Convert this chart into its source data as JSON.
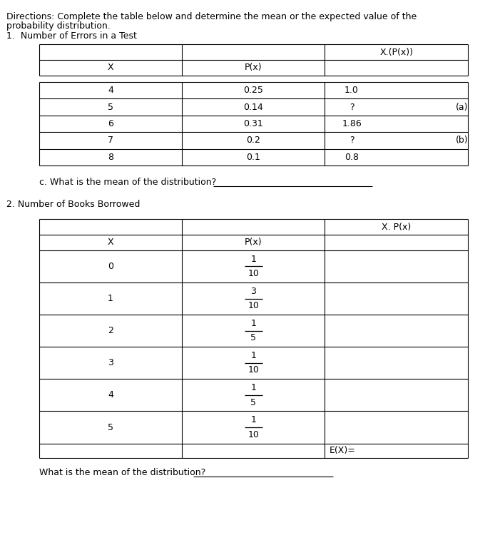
{
  "directions_line1": "Directions: Complete the table below and determine the mean or the expected value of the",
  "directions_line2": "probability distribution.",
  "section1_title": "1.  Number of Errors in a Test",
  "table1_col3_header": "X.(P(x))",
  "table1_col1_header": "X",
  "table1_col2_header": "P(x)",
  "table1_rows": [
    [
      "4",
      "0.25",
      "1.0",
      ""
    ],
    [
      "5",
      "0.14",
      "?",
      "(a)"
    ],
    [
      "6",
      "0.31",
      "1.86",
      ""
    ],
    [
      "7",
      "0.2",
      "?",
      "(b)"
    ],
    [
      "8",
      "0.1",
      "0.8",
      ""
    ]
  ],
  "section1_question": "c. What is the mean of the distribution?",
  "section2_title": "2. Number of Books Borrowed",
  "table2_col3_header": "X. P(x)",
  "table2_col1_header": "X",
  "table2_col2_header": "P(x)",
  "table2_x_vals": [
    "0",
    "1",
    "2",
    "3",
    "4",
    "5"
  ],
  "table2_fracs": [
    [
      "1",
      "10"
    ],
    [
      "3",
      "10"
    ],
    [
      "1",
      "5"
    ],
    [
      "1",
      "10"
    ],
    [
      "1",
      "5"
    ],
    [
      "1",
      "10"
    ]
  ],
  "section2_question": "What is the mean of the distribution?",
  "bg_color": "#ffffff",
  "font_size": 9.0
}
